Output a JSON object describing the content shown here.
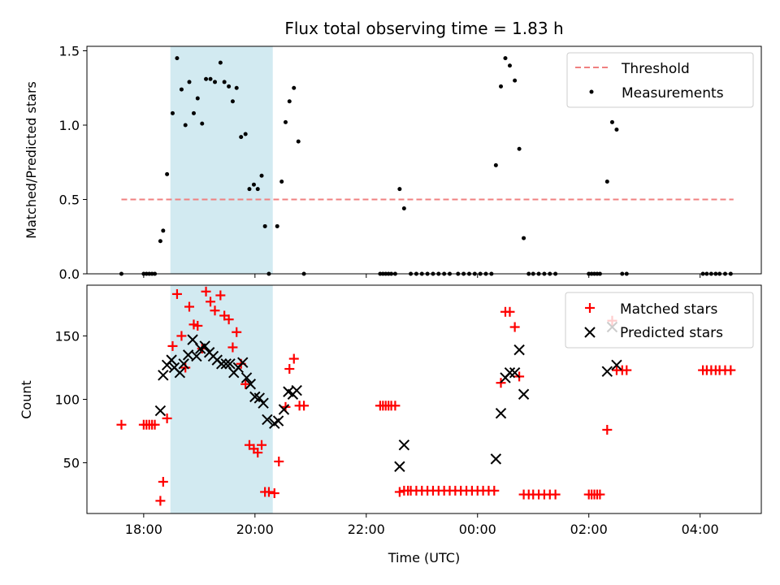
{
  "chart_data": [
    {
      "type": "scatter",
      "title": "Flux total observing time = 1.83 h",
      "xlabel": "",
      "ylabel": "Matched/Predicted stars",
      "x_unit": "hours since 00:00 UTC of first night (ticks labelled as times)",
      "xlim": [
        -7.02,
        5.1
      ],
      "ylim": [
        0,
        1.53
      ],
      "yticks": [
        0.0,
        0.5,
        1.0,
        1.5
      ],
      "ytick_labels": [
        "0.0",
        "0.5",
        "1.0",
        "1.5"
      ],
      "xticks": [
        -6,
        -4,
        -2,
        0,
        2,
        4
      ],
      "xtick_labels": [
        "",
        "",
        "",
        "",
        "",
        ""
      ],
      "shaded_region": {
        "x": [
          -5.52,
          -3.68
        ],
        "color": "#add8e6"
      },
      "legend_position": "top-right",
      "threshold": {
        "name": "Threshold",
        "y": 0.5,
        "x": [
          -6.4,
          4.6
        ],
        "color": "#f08080",
        "style": "dashed"
      },
      "series": [
        {
          "name": "Measurements",
          "color": "#000000",
          "marker": "dot",
          "points": [
            [
              -6.4,
              0
            ],
            [
              -6.0,
              0
            ],
            [
              -5.95,
              0
            ],
            [
              -5.9,
              0
            ],
            [
              -5.85,
              0
            ],
            [
              -5.8,
              0
            ],
            [
              -5.7,
              0.22
            ],
            [
              -5.65,
              0.29
            ],
            [
              -5.58,
              0.67
            ],
            [
              -5.48,
              1.08
            ],
            [
              -5.4,
              1.45
            ],
            [
              -5.32,
              1.24
            ],
            [
              -5.25,
              1.0
            ],
            [
              -5.18,
              1.29
            ],
            [
              -5.1,
              1.08
            ],
            [
              -5.03,
              1.18
            ],
            [
              -4.95,
              1.01
            ],
            [
              -4.88,
              1.31
            ],
            [
              -4.8,
              1.31
            ],
            [
              -4.72,
              1.29
            ],
            [
              -4.62,
              1.42
            ],
            [
              -4.55,
              1.29
            ],
            [
              -4.47,
              1.26
            ],
            [
              -4.4,
              1.16
            ],
            [
              -4.33,
              1.25
            ],
            [
              -4.25,
              0.92
            ],
            [
              -4.17,
              0.94
            ],
            [
              -4.1,
              0.57
            ],
            [
              -4.02,
              0.6
            ],
            [
              -3.95,
              0.57
            ],
            [
              -3.88,
              0.66
            ],
            [
              -3.82,
              0.32
            ],
            [
              -3.75,
              0
            ],
            [
              -3.6,
              0.32
            ],
            [
              -3.52,
              0.62
            ],
            [
              -3.45,
              1.02
            ],
            [
              -3.38,
              1.16
            ],
            [
              -3.3,
              1.25
            ],
            [
              -3.22,
              0.89
            ],
            [
              -3.12,
              0
            ],
            [
              -1.75,
              0
            ],
            [
              -1.7,
              0
            ],
            [
              -1.65,
              0
            ],
            [
              -1.6,
              0
            ],
            [
              -1.55,
              0
            ],
            [
              -1.48,
              0
            ],
            [
              -1.4,
              0.57
            ],
            [
              -1.32,
              0.44
            ],
            [
              -1.2,
              0
            ],
            [
              -1.1,
              0
            ],
            [
              -1.0,
              0
            ],
            [
              -0.9,
              0
            ],
            [
              -0.8,
              0
            ],
            [
              -0.7,
              0
            ],
            [
              -0.6,
              0
            ],
            [
              -0.5,
              0
            ],
            [
              -0.35,
              0
            ],
            [
              -0.25,
              0
            ],
            [
              -0.15,
              0
            ],
            [
              -0.05,
              0
            ],
            [
              0.05,
              0
            ],
            [
              0.15,
              0
            ],
            [
              0.25,
              0
            ],
            [
              0.33,
              0.73
            ],
            [
              0.42,
              1.26
            ],
            [
              0.5,
              1.45
            ],
            [
              0.58,
              1.4
            ],
            [
              0.67,
              1.3
            ],
            [
              0.75,
              0.84
            ],
            [
              0.83,
              0.24
            ],
            [
              0.92,
              0
            ],
            [
              1.0,
              0
            ],
            [
              1.1,
              0
            ],
            [
              1.2,
              0
            ],
            [
              1.3,
              0
            ],
            [
              1.4,
              0
            ],
            [
              2.0,
              0
            ],
            [
              2.05,
              0
            ],
            [
              2.1,
              0
            ],
            [
              2.15,
              0
            ],
            [
              2.2,
              0
            ],
            [
              2.33,
              0.62
            ],
            [
              2.42,
              1.02
            ],
            [
              2.5,
              0.97
            ],
            [
              2.6,
              0
            ],
            [
              2.68,
              0
            ],
            [
              4.05,
              0
            ],
            [
              4.12,
              0
            ],
            [
              4.2,
              0
            ],
            [
              4.28,
              0
            ],
            [
              4.35,
              0
            ],
            [
              4.45,
              0
            ],
            [
              4.55,
              0
            ]
          ]
        }
      ]
    },
    {
      "type": "scatter",
      "title": "",
      "xlabel": "Time (UTC)",
      "ylabel": "Count",
      "x_unit": "hours since 00:00 UTC of first night (ticks labelled as times)",
      "xlim": [
        -7.02,
        5.1
      ],
      "ylim": [
        10,
        190
      ],
      "yticks": [
        50,
        100,
        150
      ],
      "ytick_labels": [
        "50",
        "100",
        "150"
      ],
      "xticks": [
        -6,
        -4,
        -2,
        0,
        2,
        4
      ],
      "xtick_labels": [
        "18:00",
        "20:00",
        "22:00",
        "00:00",
        "02:00",
        "04:00"
      ],
      "shaded_region": {
        "x": [
          -5.52,
          -3.68
        ],
        "color": "#add8e6"
      },
      "legend_position": "top-right",
      "series": [
        {
          "name": "Matched stars",
          "color": "#ff0000",
          "marker": "plus",
          "points": [
            [
              -6.4,
              80
            ],
            [
              -6.0,
              80
            ],
            [
              -5.95,
              80
            ],
            [
              -5.9,
              80
            ],
            [
              -5.85,
              80
            ],
            [
              -5.8,
              80
            ],
            [
              -5.7,
              20
            ],
            [
              -5.65,
              35
            ],
            [
              -5.58,
              85
            ],
            [
              -5.48,
              142
            ],
            [
              -5.4,
              183
            ],
            [
              -5.32,
              150
            ],
            [
              -5.25,
              125
            ],
            [
              -5.18,
              173
            ],
            [
              -5.1,
              159
            ],
            [
              -5.03,
              158
            ],
            [
              -4.95,
              140
            ],
            [
              -4.88,
              185
            ],
            [
              -4.8,
              177
            ],
            [
              -4.72,
              170
            ],
            [
              -4.62,
              182
            ],
            [
              -4.55,
              166
            ],
            [
              -4.47,
              163
            ],
            [
              -4.4,
              141
            ],
            [
              -4.33,
              153
            ],
            [
              -4.25,
              128
            ],
            [
              -4.17,
              112
            ],
            [
              -4.1,
              64
            ],
            [
              -4.02,
              61
            ],
            [
              -3.95,
              58
            ],
            [
              -3.88,
              64
            ],
            [
              -3.82,
              27
            ],
            [
              -3.75,
              27
            ],
            [
              -3.65,
              26
            ],
            [
              -3.57,
              51
            ],
            [
              -3.45,
              94
            ],
            [
              -3.38,
              124
            ],
            [
              -3.3,
              132
            ],
            [
              -3.2,
              95
            ],
            [
              -3.12,
              95
            ],
            [
              -1.75,
              95
            ],
            [
              -1.7,
              95
            ],
            [
              -1.65,
              95
            ],
            [
              -1.6,
              95
            ],
            [
              -1.55,
              95
            ],
            [
              -1.48,
              95
            ],
            [
              -1.4,
              27
            ],
            [
              -1.32,
              28
            ],
            [
              -1.25,
              28
            ],
            [
              -1.2,
              28
            ],
            [
              -1.1,
              28
            ],
            [
              -1.0,
              28
            ],
            [
              -0.9,
              28
            ],
            [
              -0.8,
              28
            ],
            [
              -0.7,
              28
            ],
            [
              -0.6,
              28
            ],
            [
              -0.5,
              28
            ],
            [
              -0.4,
              28
            ],
            [
              -0.3,
              28
            ],
            [
              -0.2,
              28
            ],
            [
              -0.1,
              28
            ],
            [
              0.0,
              28
            ],
            [
              0.1,
              28
            ],
            [
              0.2,
              28
            ],
            [
              0.3,
              28
            ],
            [
              0.42,
              113
            ],
            [
              0.5,
              169
            ],
            [
              0.58,
              169
            ],
            [
              0.67,
              157
            ],
            [
              0.75,
              118
            ],
            [
              0.83,
              25
            ],
            [
              0.92,
              25
            ],
            [
              1.0,
              25
            ],
            [
              1.1,
              25
            ],
            [
              1.2,
              25
            ],
            [
              1.3,
              25
            ],
            [
              1.4,
              25
            ],
            [
              2.0,
              25
            ],
            [
              2.05,
              25
            ],
            [
              2.1,
              25
            ],
            [
              2.15,
              25
            ],
            [
              2.2,
              25
            ],
            [
              2.33,
              76
            ],
            [
              2.42,
              162
            ],
            [
              2.5,
              123
            ],
            [
              2.6,
              123
            ],
            [
              2.68,
              123
            ],
            [
              4.05,
              123
            ],
            [
              4.12,
              123
            ],
            [
              4.2,
              123
            ],
            [
              4.28,
              123
            ],
            [
              4.35,
              123
            ],
            [
              4.45,
              123
            ],
            [
              4.55,
              123
            ]
          ]
        },
        {
          "name": "Predicted stars",
          "color": "#000000",
          "marker": "x",
          "points": [
            [
              -5.7,
              91
            ],
            [
              -5.65,
              119
            ],
            [
              -5.58,
              127
            ],
            [
              -5.5,
              131
            ],
            [
              -5.45,
              125
            ],
            [
              -5.35,
              121
            ],
            [
              -5.28,
              128
            ],
            [
              -5.2,
              135
            ],
            [
              -5.12,
              147
            ],
            [
              -5.05,
              134
            ],
            [
              -4.98,
              140
            ],
            [
              -4.9,
              142
            ],
            [
              -4.82,
              137
            ],
            [
              -4.75,
              134
            ],
            [
              -4.68,
              131
            ],
            [
              -4.6,
              128
            ],
            [
              -4.52,
              128
            ],
            [
              -4.45,
              128
            ],
            [
              -4.38,
              121
            ],
            [
              -4.3,
              125
            ],
            [
              -4.22,
              129
            ],
            [
              -4.15,
              117
            ],
            [
              -4.08,
              112
            ],
            [
              -4.0,
              102
            ],
            [
              -3.92,
              101
            ],
            [
              -3.85,
              97
            ],
            [
              -3.78,
              84
            ],
            [
              -3.65,
              81
            ],
            [
              -3.58,
              83
            ],
            [
              -3.48,
              92
            ],
            [
              -3.4,
              106
            ],
            [
              -3.32,
              104
            ],
            [
              -3.25,
              107
            ],
            [
              -1.4,
              47
            ],
            [
              -1.32,
              64
            ],
            [
              0.33,
              53
            ],
            [
              0.42,
              89
            ],
            [
              0.5,
              117
            ],
            [
              0.58,
              121
            ],
            [
              0.67,
              121
            ],
            [
              0.75,
              139
            ],
            [
              0.83,
              104
            ],
            [
              2.33,
              122
            ],
            [
              2.42,
              157
            ],
            [
              2.5,
              127
            ]
          ]
        }
      ]
    }
  ]
}
